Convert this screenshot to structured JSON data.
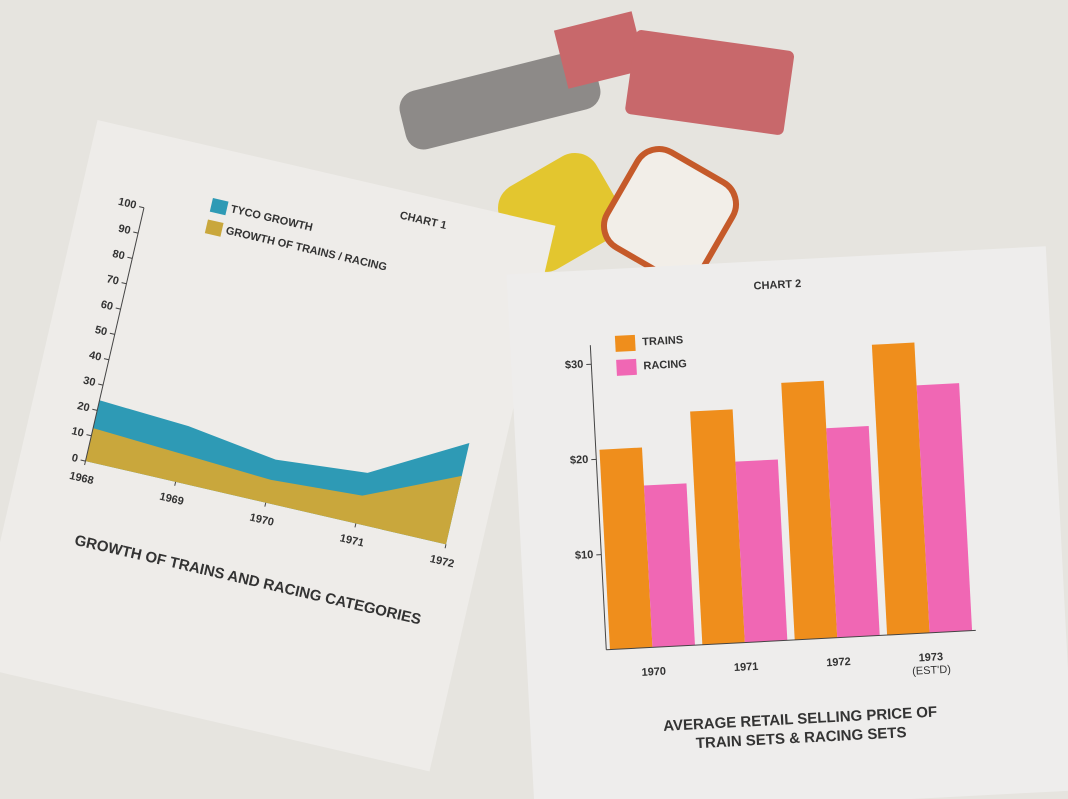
{
  "chart_data": [
    {
      "type": "area",
      "title": "CHART 1",
      "footer": "GROWTH OF TRAINS AND RACING CATEGORIES",
      "x": [
        1968,
        1969,
        1970,
        1971,
        1972
      ],
      "xlim": [
        1968,
        1972
      ],
      "xticks": [
        1968,
        1969,
        1970,
        1971,
        1972
      ],
      "ylim": [
        0,
        100
      ],
      "yticks": [
        0,
        10,
        20,
        30,
        40,
        50,
        60,
        70,
        80,
        90,
        100
      ],
      "series": [
        {
          "name": "TYCO GROWTH",
          "color": "#2e9ab5",
          "values": [
            24,
            22,
            17,
            20,
            40
          ]
        },
        {
          "name": "GROWTH OF TRAINS / RACING",
          "color": "#c9a73c",
          "values": [
            13,
            11,
            9,
            11,
            27
          ]
        }
      ]
    },
    {
      "type": "bar",
      "title": "CHART 2",
      "footer": [
        "AVERAGE RETAIL SELLING PRICE OF",
        "TRAIN SETS & RACING SETS"
      ],
      "categories": [
        "1970",
        "1971",
        "1972",
        "1973"
      ],
      "annotations": [
        "(EST'D)"
      ],
      "ylim": [
        0,
        32
      ],
      "yticks": [
        {
          "value": 10,
          "label": "$10"
        },
        {
          "value": 20,
          "label": "$20"
        },
        {
          "value": 30,
          "label": "$30"
        }
      ],
      "series": [
        {
          "name": "TRAINS",
          "color": "#ef8e1c",
          "values": [
            21,
            24.5,
            27,
            30.5
          ]
        },
        {
          "name": "RACING",
          "color": "#f067b4",
          "values": [
            17,
            19,
            22,
            26
          ]
        }
      ]
    }
  ]
}
